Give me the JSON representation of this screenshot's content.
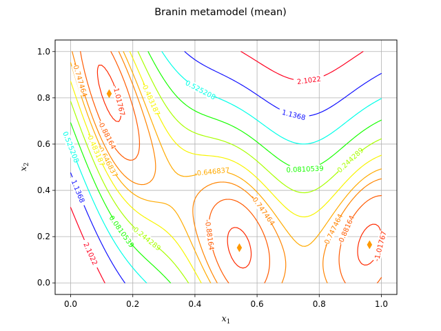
{
  "chart_data": {
    "type": "contour",
    "title": "Branin metamodel (mean)",
    "xlabel": "x",
    "xlabel_sub": "1",
    "ylabel": "x",
    "ylabel_sub": "2",
    "xlim": [
      -0.05,
      1.05
    ],
    "ylim": [
      -0.05,
      1.05
    ],
    "xticks": [
      0.0,
      0.2,
      0.4,
      0.6,
      0.8,
      1.0
    ],
    "yticks": [
      0.0,
      0.2,
      0.4,
      0.6,
      0.8,
      1.0
    ],
    "xtick_labels": [
      "0.0",
      "0.2",
      "0.4",
      "0.6",
      "0.8",
      "1.0"
    ],
    "ytick_labels": [
      "0.0",
      "0.2",
      "0.4",
      "0.6",
      "0.8",
      "1.0"
    ],
    "grid": true,
    "colormap": "hsv",
    "levels": [
      {
        "value": -1.01767,
        "label": "-1.01767",
        "color": "#ff2a00"
      },
      {
        "value": -0.88164,
        "label": "-0.88164",
        "color": "#ff5a00"
      },
      {
        "value": -0.747464,
        "label": "-0.747464",
        "color": "#ff8400"
      },
      {
        "value": -0.646837,
        "label": "-0.646837",
        "color": "#ffaa00"
      },
      {
        "value": -0.483187,
        "label": "-0.483187",
        "color": "#f7f400"
      },
      {
        "value": -0.244289,
        "label": "-0.244289",
        "color": "#a8ff00"
      },
      {
        "value": 0.0810539,
        "label": "0.0810539",
        "color": "#17ff00"
      },
      {
        "value": 0.525208,
        "label": "0.525208",
        "color": "#00ffe8"
      },
      {
        "value": 1.1368,
        "label": "1.1368",
        "color": "#1010ff"
      },
      {
        "value": 2.1022,
        "label": "2.1022",
        "color": "#ff0020"
      }
    ],
    "minima_markers": [
      {
        "x": 0.124,
        "y": 0.818
      },
      {
        "x": 0.543,
        "y": 0.152
      },
      {
        "x": 0.962,
        "y": 0.165
      }
    ],
    "marker_color": "#ff9900",
    "marker_shape": "thin-diamond"
  }
}
